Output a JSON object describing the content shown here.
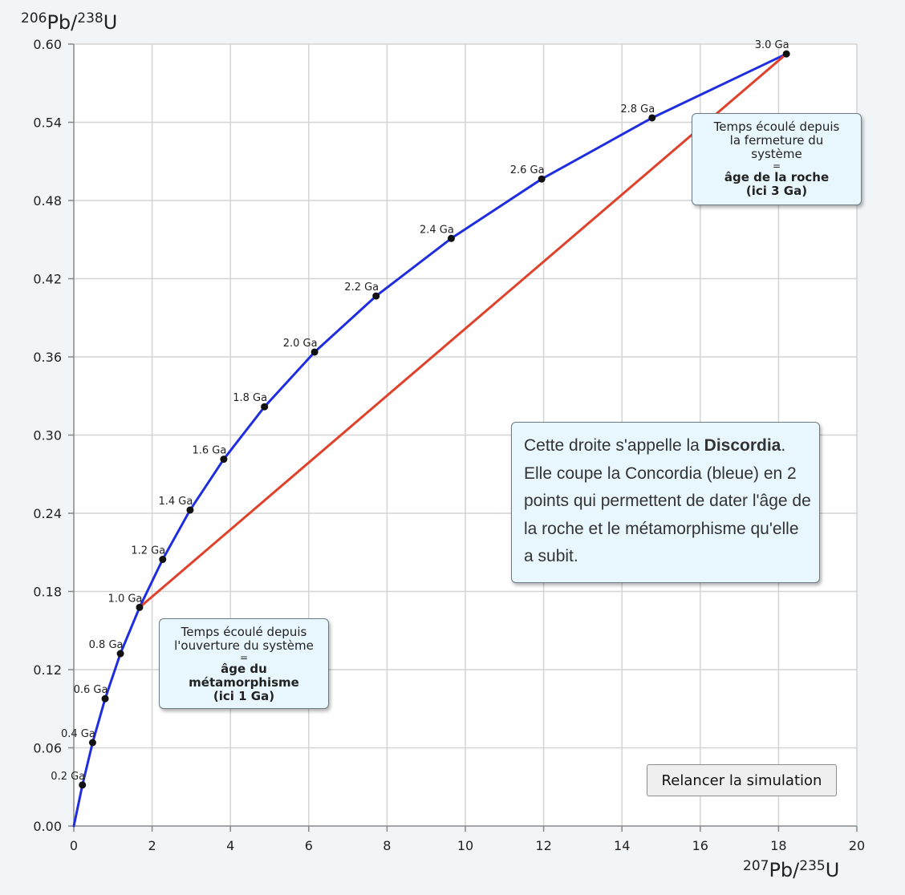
{
  "chart_data": {
    "type": "line",
    "xlabel": {
      "sup1": "207",
      "base1": "Pb/",
      "sup2": "235",
      "base2": "U"
    },
    "ylabel": {
      "sup1": "206",
      "base1": "Pb/",
      "sup2": "238",
      "base2": "U"
    },
    "xlim": [
      0,
      20
    ],
    "ylim": [
      0,
      0.6
    ],
    "x_ticks": [
      "0",
      "2",
      "4",
      "6",
      "8",
      "10",
      "12",
      "14",
      "16",
      "18",
      "20"
    ],
    "y_ticks": [
      "0.00",
      "0.06",
      "0.12",
      "0.18",
      "0.24",
      "0.30",
      "0.36",
      "0.42",
      "0.48",
      "0.54",
      "0.60"
    ],
    "grid": true,
    "series": [
      {
        "color": "#1f2de0",
        "points": [
          {
            "label": "0.2 Ga",
            "x": 0.22,
            "y": 0.0315
          },
          {
            "label": "0.4 Ga",
            "x": 0.48,
            "y": 0.064
          },
          {
            "label": "0.6 Ga",
            "x": 0.8,
            "y": 0.0977
          },
          {
            "label": "0.8 Ga",
            "x": 1.19,
            "y": 0.1323
          },
          {
            "label": "1.0 Ga",
            "x": 1.68,
            "y": 0.1678
          },
          {
            "label": "1.2 Ga",
            "x": 2.27,
            "y": 0.2046
          },
          {
            "label": "1.4 Ga",
            "x": 2.97,
            "y": 0.2425
          },
          {
            "label": "1.6 Ga",
            "x": 3.83,
            "y": 0.2815
          },
          {
            "label": "1.8 Ga",
            "x": 4.87,
            "y": 0.3217
          },
          {
            "label": "2.0 Ga",
            "x": 6.15,
            "y": 0.3637
          },
          {
            "label": "2.2 Ga",
            "x": 7.72,
            "y": 0.4067
          },
          {
            "label": "2.4 Ga",
            "x": 9.64,
            "y": 0.4509
          },
          {
            "label": "2.6 Ga",
            "x": 11.95,
            "y": 0.4965
          },
          {
            "label": "2.8 Ga",
            "x": 14.77,
            "y": 0.5434
          },
          {
            "label": "3.0 Ga",
            "x": 18.2,
            "y": 0.5925
          }
        ]
      },
      {
        "color": "#e0412a",
        "points": [
          {
            "x": 1.68,
            "y": 0.1678
          },
          {
            "x": 18.2,
            "y": 0.5925
          }
        ]
      }
    ]
  },
  "callouts": {
    "metamorphism": {
      "line1": "Temps écoulé depuis",
      "line2": "l'ouverture du système",
      "eq": "=",
      "bold1": "âge du",
      "bold2": "métamorphisme",
      "bold3": "(ici 1 Ga)"
    },
    "rock_age": {
      "line1": "Temps écoulé depuis",
      "line2": "la fermeture du",
      "line3": "système",
      "eq": "=",
      "bold1": "âge de la roche",
      "bold2": "(ici 3 Ga)"
    },
    "discordia": {
      "t1": "Cette droite s'appelle la",
      "bold": "Discordia",
      "t2": ". Elle coupe la Concordia (bleue) en 2 points qui permettent de dater l'âge de la roche et le métamorphisme qu'elle a subit."
    }
  },
  "controls": {
    "restart_label": "Relancer la simulation"
  }
}
